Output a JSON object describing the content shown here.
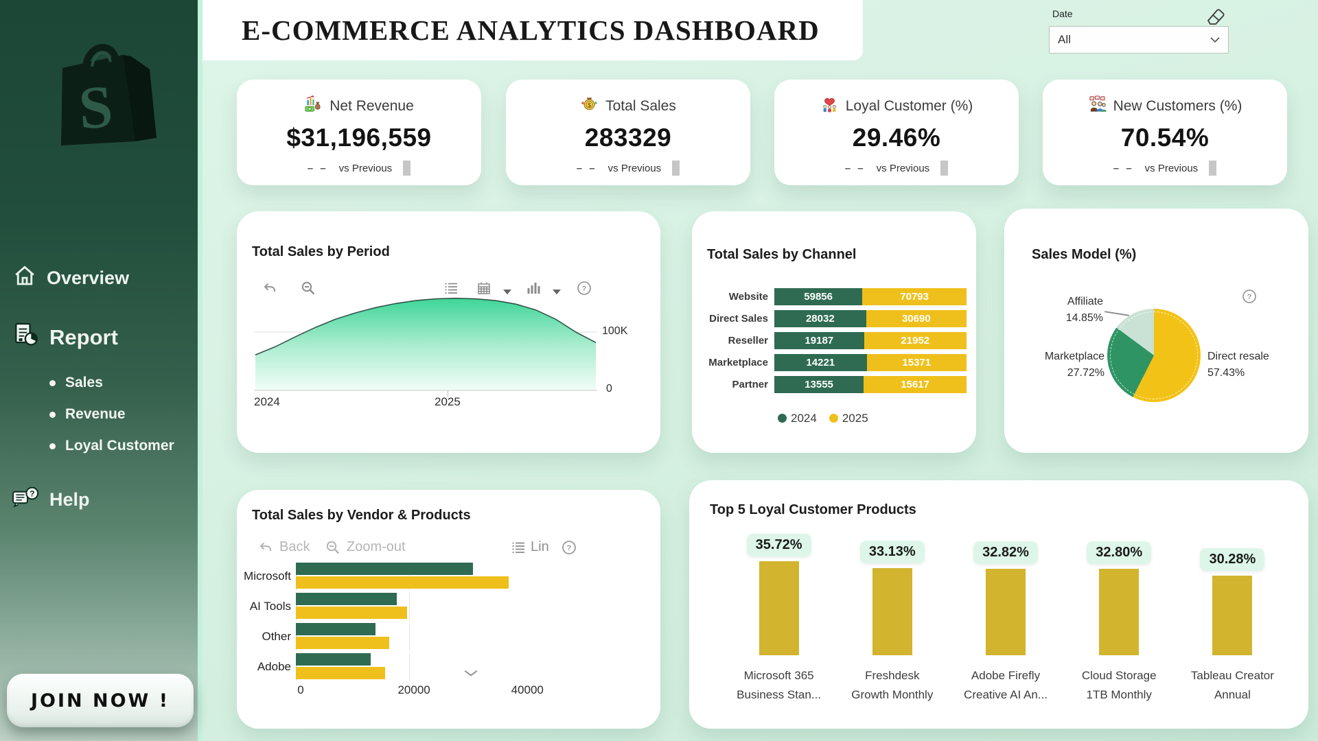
{
  "app": {
    "title": "E-COMMERCE ANALYTICS DASHBOARD"
  },
  "date_filter": {
    "label": "Date",
    "value": "All"
  },
  "sidebar": {
    "overview": "Overview",
    "report": "Report",
    "report_items": [
      "Sales",
      "Revenue",
      "Loyal Customer"
    ],
    "help": "Help",
    "join": "JOIN NOW !"
  },
  "kpis": [
    {
      "label": "Net Revenue",
      "value": "$31,196,559",
      "delta": "– –",
      "vs": "vs Previous"
    },
    {
      "label": "Total Sales",
      "value": "283329",
      "delta": "– –",
      "vs": "vs Previous"
    },
    {
      "label": "Loyal Customer (%)",
      "value": "29.46%",
      "delta": "– –",
      "vs": "vs Previous"
    },
    {
      "label": "New Customers (%)",
      "value": "70.54%",
      "delta": "– –",
      "vs": "vs Previous"
    }
  ],
  "panels": {
    "vendor_toolbar": {
      "back": "Back",
      "zoom_out": "Zoom-out",
      "lin": "Lin"
    }
  },
  "colors": {
    "green": "#2E6B52",
    "yellow": "#EFC01B",
    "pie_yellow": "#F3C216",
    "pie_green": "#2E9464",
    "pie_pale": "#C9E2D5",
    "gold": "#D2B42E",
    "mint": "#D9F2E5"
  },
  "chart_data": [
    {
      "id": "sales_by_period",
      "type": "area",
      "title": "Total Sales by Period",
      "x_tick_labels": [
        "2024",
        "2025"
      ],
      "y_tick_labels": [
        "100K",
        "0"
      ],
      "y_gridline_k": 100,
      "values_k": [
        61,
        75,
        92,
        108,
        122,
        133,
        142,
        149,
        154,
        157,
        158,
        157,
        154,
        148,
        138,
        122,
        100,
        82
      ],
      "x_range_note": "2024 through mid-2026, 2025 tick at 56% of axis"
    },
    {
      "id": "sales_by_channel",
      "type": "stacked-bar-100",
      "title": "Total Sales by Channel",
      "categories": [
        "Website",
        "Direct Sales",
        "Reseller",
        "Marketplace",
        "Partner"
      ],
      "series": [
        {
          "name": "2024",
          "values": [
            59856,
            28032,
            19187,
            14221,
            13555
          ]
        },
        {
          "name": "2025",
          "values": [
            70793,
            30690,
            21952,
            15371,
            15617
          ]
        }
      ],
      "legend_position": "bottom"
    },
    {
      "id": "sales_model",
      "type": "pie",
      "title": "Sales Model (%)",
      "slices": [
        {
          "label": "Direct resale",
          "pct": 57.43,
          "pct_label": "57.43%"
        },
        {
          "label": "Marketplace",
          "pct": 27.72,
          "pct_label": "27.72%"
        },
        {
          "label": "Affiliate",
          "pct": 14.85,
          "pct_label": "14.85%"
        }
      ]
    },
    {
      "id": "vendor_products",
      "type": "grouped-bar-h",
      "title": "Total Sales by Vendor & Products",
      "categories": [
        "Microsoft",
        "AI Tools",
        "Other",
        "Adobe"
      ],
      "series": [
        {
          "name": "2024",
          "values": [
            31300,
            17800,
            14000,
            13200
          ]
        },
        {
          "name": "2025",
          "values": [
            37600,
            19600,
            16500,
            15800
          ]
        }
      ],
      "x_tick_labels": [
        "0",
        "20000",
        "40000"
      ],
      "x_ticks": [
        0,
        20000,
        40000
      ],
      "x_max": 45300
    },
    {
      "id": "top5_loyal",
      "type": "column",
      "title": "Top 5 Loyal Customer Products",
      "categories": [
        [
          "Microsoft 365",
          "Business Stan..."
        ],
        [
          "Freshdesk",
          "Growth Monthly"
        ],
        [
          "Adobe Firefly",
          "Creative AI An..."
        ],
        [
          "Cloud Storage",
          "1TB Monthly"
        ],
        [
          "Tableau Creator",
          "Annual"
        ]
      ],
      "values_pct": [
        35.72,
        33.13,
        32.82,
        32.8,
        30.28
      ],
      "value_labels": [
        "35.72%",
        "33.13%",
        "32.82%",
        "32.80%",
        "30.28%"
      ]
    }
  ]
}
